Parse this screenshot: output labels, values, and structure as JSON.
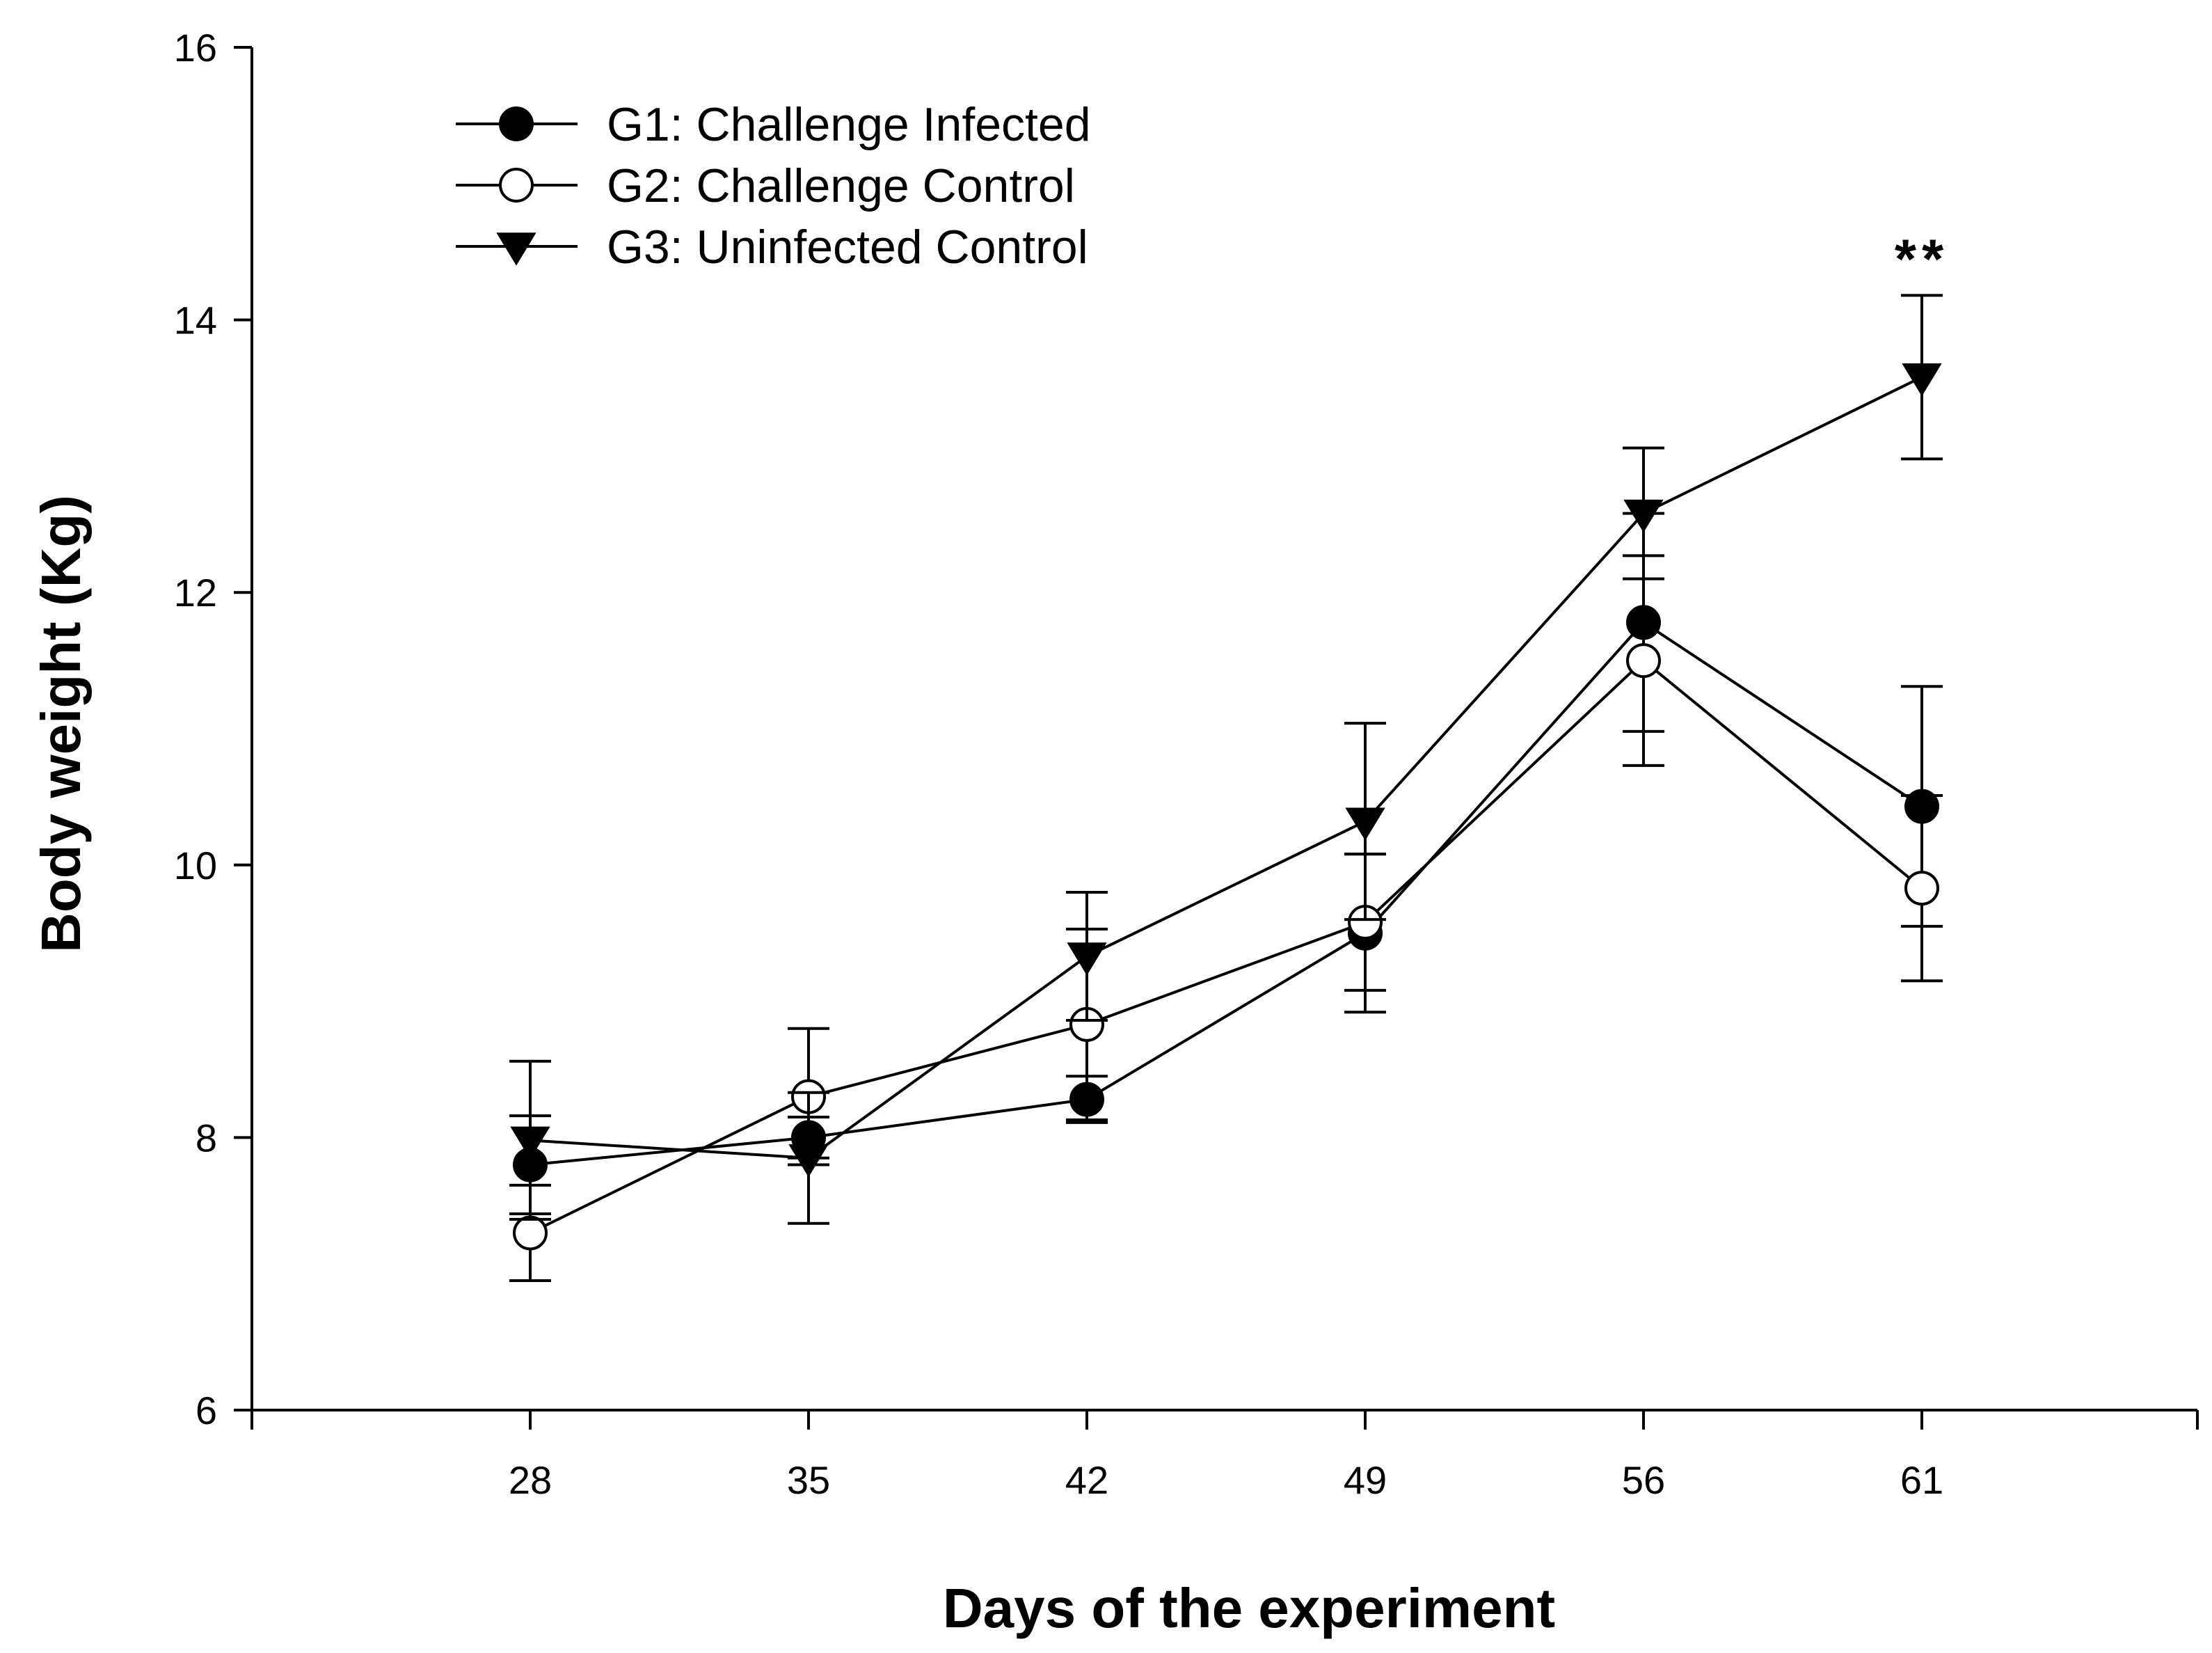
{
  "chart_data": {
    "type": "line",
    "title": "",
    "xlabel": "Days of the experiment",
    "ylabel": "Body weight (Kg)",
    "x": [
      28,
      35,
      42,
      49,
      56,
      61
    ],
    "x_tick_labels": [
      "28",
      "35",
      "42",
      "49",
      "56",
      "61"
    ],
    "ylim": [
      6,
      16
    ],
    "y_ticks": [
      6,
      8,
      10,
      12,
      14,
      16
    ],
    "y_tick_labels": [
      "6",
      "8",
      "10",
      "12",
      "14",
      "16"
    ],
    "legend_position": "top-left",
    "grid": false,
    "series": [
      {
        "name": "G1: Challenge Infected",
        "marker": "filled-circle",
        "values": [
          7.8,
          8.0,
          8.28,
          9.5,
          11.78,
          10.43
        ],
        "errors": [
          0.36,
          0.15,
          0.17,
          0.58,
          0.8,
          0.88
        ]
      },
      {
        "name": "G2: Challenge Control",
        "marker": "open-circle",
        "values": [
          7.3,
          8.3,
          8.83,
          9.58,
          11.5,
          9.83
        ],
        "errors": [
          0.35,
          0.5,
          0.7,
          0.5,
          0.77,
          0.68
        ]
      },
      {
        "name": "G3: Uninfected Control",
        "marker": "filled-triangle-down",
        "values": [
          7.98,
          7.85,
          9.33,
          10.32,
          12.58,
          13.58
        ],
        "errors": [
          0.58,
          0.48,
          0.47,
          0.72,
          0.48,
          0.6
        ]
      }
    ],
    "annotations": [
      {
        "text": "**",
        "x": 61,
        "y": 14.45
      }
    ]
  }
}
